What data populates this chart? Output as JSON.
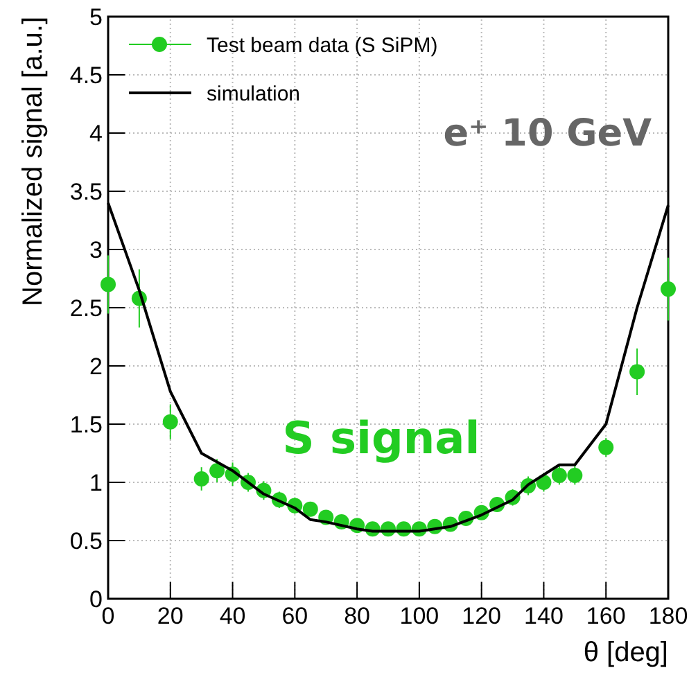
{
  "chart_data": {
    "type": "scatter",
    "xlabel": "θ [deg]",
    "ylabel": "Normalized signal [a.u.]",
    "xlim": [
      0,
      180
    ],
    "xticks": [
      0,
      20,
      40,
      60,
      80,
      100,
      120,
      140,
      160,
      180
    ],
    "ylim": [
      0,
      5
    ],
    "yticks": [
      0,
      0.5,
      1,
      1.5,
      2,
      2.5,
      3,
      3.5,
      4,
      4.5,
      5
    ],
    "grid": true,
    "legend": "top left",
    "annotations": [
      "e⁺  10 GeV",
      "S signal"
    ],
    "series": [
      {
        "name": "Test beam data (S SiPM)",
        "marker": "circle",
        "color": "#22cc22",
        "x": [
          0,
          10,
          20,
          30,
          35,
          40,
          45,
          50,
          55,
          60,
          65,
          70,
          75,
          80,
          85,
          90,
          95,
          100,
          105,
          110,
          115,
          120,
          125,
          130,
          135,
          140,
          145,
          150,
          160,
          170,
          180
        ],
        "values": [
          2.7,
          2.58,
          1.52,
          1.03,
          1.1,
          1.07,
          1.0,
          0.93,
          0.85,
          0.8,
          0.77,
          0.7,
          0.66,
          0.63,
          0.6,
          0.6,
          0.6,
          0.6,
          0.62,
          0.64,
          0.69,
          0.74,
          0.81,
          0.87,
          0.97,
          1.0,
          1.06,
          1.06,
          1.3,
          1.95,
          2.66
        ],
        "errors": [
          0.25,
          0.25,
          0.15,
          0.1,
          0.1,
          0.1,
          0.08,
          0.08,
          0.07,
          0.07,
          0.06,
          0.06,
          0.05,
          0.05,
          0.05,
          0.05,
          0.05,
          0.05,
          0.05,
          0.05,
          0.05,
          0.05,
          0.06,
          0.07,
          0.08,
          0.08,
          0.08,
          0.08,
          0.08,
          0.2,
          0.27
        ],
        "xerrors": [
          2,
          2,
          2,
          2,
          2,
          2,
          2,
          2,
          2,
          2,
          2,
          2,
          2,
          2,
          2,
          2,
          2,
          2,
          2,
          2,
          2,
          2,
          2,
          2,
          2,
          2,
          2,
          2,
          2,
          2,
          2
        ]
      },
      {
        "name": "simulation",
        "type": "line",
        "line_style": "solid",
        "color": "#000000",
        "x": [
          0,
          10,
          20,
          30,
          40,
          50,
          60,
          65,
          70,
          80,
          85,
          90,
          100,
          110,
          120,
          130,
          135,
          145,
          150,
          160,
          170,
          180
        ],
        "values": [
          3.4,
          2.65,
          1.78,
          1.25,
          1.1,
          0.9,
          0.78,
          0.68,
          0.66,
          0.6,
          0.58,
          0.58,
          0.58,
          0.62,
          0.72,
          0.85,
          0.98,
          1.15,
          1.15,
          1.5,
          2.5,
          3.38
        ]
      }
    ]
  }
}
